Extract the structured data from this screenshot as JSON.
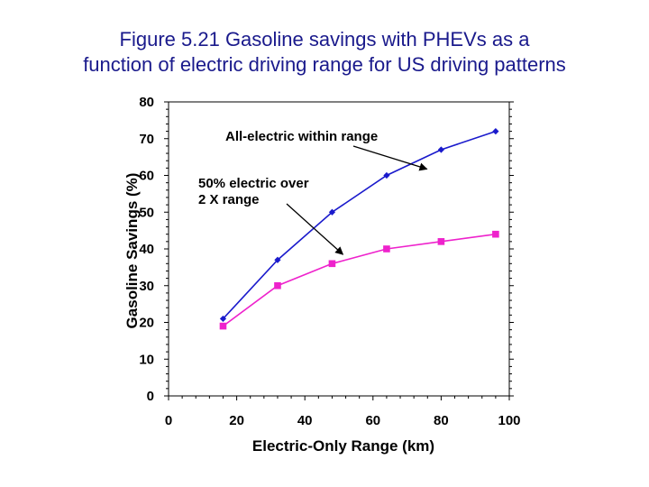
{
  "title": {
    "line1": "Figure 5.21 Gasoline savings with PHEVs as a",
    "line2": "function of electric driving range for US driving patterns"
  },
  "chart_data": {
    "type": "line",
    "xlabel": "Electric-Only Range (km)",
    "ylabel": "Gasoline Savings (%)",
    "xlim": [
      0,
      100
    ],
    "ylim": [
      0,
      80
    ],
    "xticks": [
      0,
      20,
      40,
      60,
      80,
      100
    ],
    "yticks": [
      0,
      10,
      20,
      30,
      40,
      50,
      60,
      70,
      80
    ],
    "grid": false,
    "series": [
      {
        "name": "All-electric within range",
        "color": "#1a1acc",
        "marker": "diamond",
        "x": [
          16,
          32,
          48,
          64,
          80,
          96
        ],
        "y": [
          21,
          37,
          50,
          60,
          67,
          72
        ]
      },
      {
        "name": "50% electric over 2 X range",
        "color": "#ee22cc",
        "marker": "square",
        "x": [
          16,
          32,
          48,
          64,
          80,
          96
        ],
        "y": [
          19,
          30,
          36,
          40,
          42,
          44
        ]
      }
    ],
    "annotations": [
      {
        "lines": [
          "All-electric within range"
        ],
        "target_series": 0,
        "target_point": 4
      },
      {
        "lines": [
          "50% electric over",
          "2 X range"
        ],
        "target_series": 1,
        "target_point": 2
      }
    ]
  }
}
